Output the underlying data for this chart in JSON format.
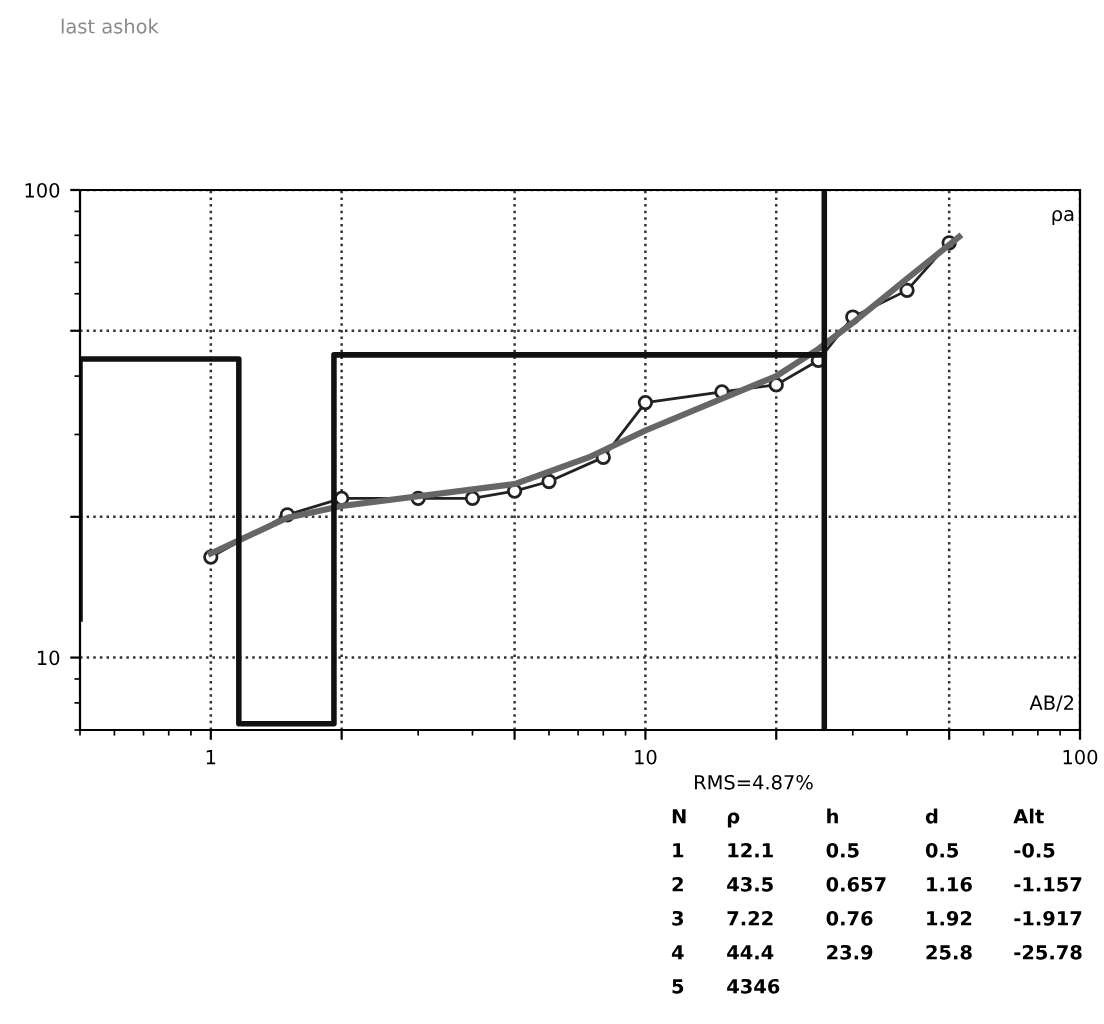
{
  "chart_data": {
    "type": "line",
    "title": "last ashok",
    "xlabel": "AB/2",
    "ylabel": "ρa",
    "log": "xy",
    "xlim": [
      0.5,
      100
    ],
    "ylim": [
      7,
      100
    ],
    "xticks": [
      1,
      {
        "value": 2,
        "label": null
      },
      {
        "value": 5,
        "label": null
      },
      10,
      {
        "value": 20,
        "label": null
      },
      {
        "value": 50,
        "label": null
      },
      100
    ],
    "yticks": [
      10,
      {
        "value": 20,
        "label": null
      },
      {
        "value": 50,
        "label": null
      },
      100
    ],
    "grid": true,
    "line_style": "solid",
    "series": [
      {
        "marker": "circle",
        "color": "#222222",
        "x": [
          1,
          1.5,
          2,
          3,
          4,
          5,
          6,
          8,
          10,
          15,
          20,
          25,
          30,
          40,
          50
        ],
        "values": [
          16.4,
          20.2,
          21.9,
          21.9,
          21.9,
          22.7,
          23.8,
          26.8,
          35.1,
          37.0,
          38.3,
          43.2,
          53.5,
          61.0,
          77.1
        ]
      },
      {
        "marker": "none",
        "color": "#666666",
        "x": [
          1,
          1.5,
          2,
          5,
          7.4,
          10,
          20,
          25,
          30,
          40,
          52.7
        ],
        "values": [
          16.7,
          19.9,
          21.1,
          23.5,
          26.8,
          30.6,
          40.0,
          45.7,
          52.0,
          64.6,
          79.4
        ]
      },
      {
        "type": "step",
        "marker": "none",
        "color": "#111111",
        "x": [
          0.5,
          0.5,
          1.16,
          1.92,
          25.8
        ],
        "values": [
          12.1,
          43.5,
          7.22,
          44.4,
          44.4
        ]
      }
    ],
    "ref_lines": [
      {
        "axis": "x",
        "value": 25.8,
        "color": "#111111"
      }
    ],
    "annotations": [
      "RMS=4.87%",
      "N",
      "ρ",
      "h",
      "d",
      "Alt",
      "1",
      "12.1",
      "0.5",
      "0.5",
      "-0.5",
      "2",
      "43.5",
      "0.657",
      "1.16",
      "-1.157",
      "3",
      "7.22",
      "0.76",
      "1.92",
      "-1.917",
      "4",
      "44.4",
      "23.9",
      "25.8",
      "-25.78",
      "5",
      "4346"
    ]
  }
}
